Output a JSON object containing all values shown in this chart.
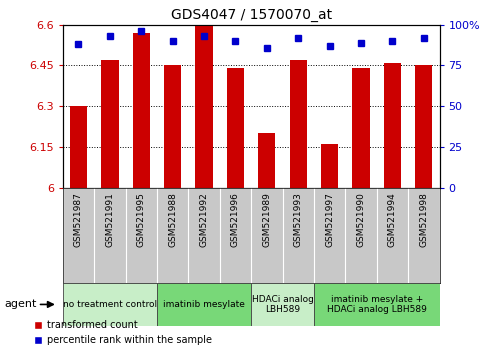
{
  "title": "GDS4047 / 1570070_at",
  "samples": [
    "GSM521987",
    "GSM521991",
    "GSM521995",
    "GSM521988",
    "GSM521992",
    "GSM521996",
    "GSM521989",
    "GSM521993",
    "GSM521997",
    "GSM521990",
    "GSM521994",
    "GSM521998"
  ],
  "bar_values": [
    6.3,
    6.47,
    6.57,
    6.45,
    6.6,
    6.44,
    6.2,
    6.47,
    6.16,
    6.44,
    6.46,
    6.45
  ],
  "dot_values": [
    88,
    93,
    96,
    90,
    93,
    90,
    86,
    92,
    87,
    89,
    90,
    92
  ],
  "bar_color": "#cc0000",
  "dot_color": "#0000cc",
  "ylim_left": [
    6.0,
    6.6
  ],
  "ylim_right": [
    0,
    100
  ],
  "yticks_left": [
    6.0,
    6.15,
    6.3,
    6.45,
    6.6
  ],
  "yticks_right": [
    0,
    25,
    50,
    75,
    100
  ],
  "ytick_labels_left": [
    "6",
    "6.15",
    "6.3",
    "6.45",
    "6.6"
  ],
  "ytick_labels_right": [
    "0",
    "25",
    "50",
    "75",
    "100%"
  ],
  "grid_lines": [
    6.15,
    6.3,
    6.45
  ],
  "group_boundaries": [
    {
      "start": 0,
      "end": 2,
      "color": "#c8eec8",
      "label": "no treatment control"
    },
    {
      "start": 3,
      "end": 5,
      "color": "#78d878",
      "label": "imatinib mesylate"
    },
    {
      "start": 6,
      "end": 7,
      "color": "#c8eec8",
      "label": "HDACi analog\nLBH589"
    },
    {
      "start": 8,
      "end": 11,
      "color": "#78d878",
      "label": "imatinib mesylate +\nHDACi analog LBH589"
    }
  ],
  "agent_label": "agent",
  "legend_items": [
    {
      "label": "transformed count",
      "color": "#cc0000"
    },
    {
      "label": "percentile rank within the sample",
      "color": "#0000cc"
    }
  ],
  "bar_width": 0.55,
  "background_color": "#ffffff",
  "plot_bg_color": "#ffffff",
  "tick_label_color_left": "#cc0000",
  "tick_label_color_right": "#0000cc",
  "sample_box_color": "#c8c8c8",
  "figsize": [
    4.83,
    3.54
  ],
  "dpi": 100
}
